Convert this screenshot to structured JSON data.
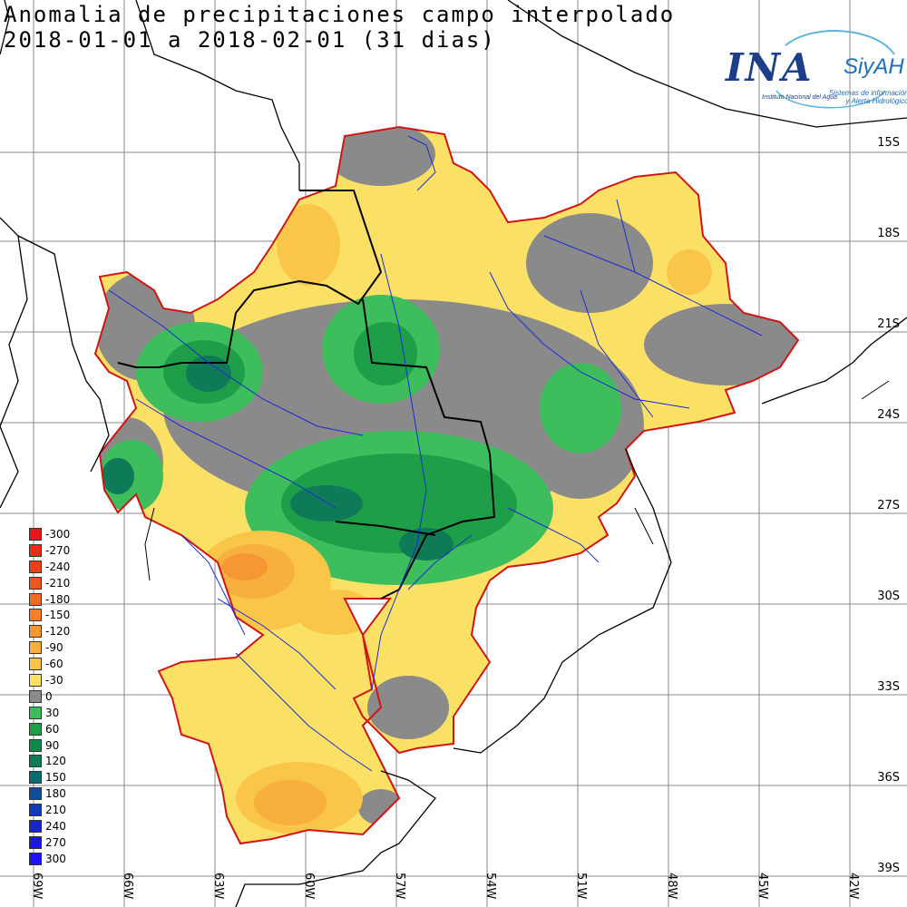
{
  "title": {
    "line1": "Anomalia de precipitaciones campo interpolado",
    "line2": "2018-01-01 a 2018-02-01 (31 dias)"
  },
  "logo": {
    "ina": "INA",
    "institute": "Instituto Nacional del Agua",
    "siyah": "SiyAH",
    "system_line1": "Sistemas de información",
    "system_line2": "y Alerta Hidrológico"
  },
  "latitudes": [
    "15S",
    "18S",
    "21S",
    "24S",
    "27S",
    "30S",
    "33S",
    "36S",
    "39S"
  ],
  "longitudes": [
    "69W",
    "66W",
    "63W",
    "60W",
    "57W",
    "54W",
    "51W",
    "48W",
    "45W",
    "42W"
  ],
  "legend": {
    "items": [
      {
        "label": "-300",
        "color": "#e8141e"
      },
      {
        "label": "-270",
        "color": "#ec2a1c"
      },
      {
        "label": "-240",
        "color": "#ee3e1e"
      },
      {
        "label": "-210",
        "color": "#f05422"
      },
      {
        "label": "-180",
        "color": "#f16a26"
      },
      {
        "label": "-150",
        "color": "#f3802c"
      },
      {
        "label": "-120",
        "color": "#f59834"
      },
      {
        "label": "-90",
        "color": "#f7b03e"
      },
      {
        "label": "-60",
        "color": "#f9c64a"
      },
      {
        "label": "-30",
        "color": "#fbe066"
      },
      {
        "label": "0",
        "color": "#8a8a8a"
      },
      {
        "label": "30",
        "color": "#3dbd5c"
      },
      {
        "label": "60",
        "color": "#1e9e48"
      },
      {
        "label": "90",
        "color": "#12884a"
      },
      {
        "label": "120",
        "color": "#0e7a58"
      },
      {
        "label": "150",
        "color": "#0c6a72"
      },
      {
        "label": "180",
        "color": "#0f4e96"
      },
      {
        "label": "210",
        "color": "#1238b4"
      },
      {
        "label": "240",
        "color": "#1426cc"
      },
      {
        "label": "270",
        "color": "#1818de"
      },
      {
        "label": "300",
        "color": "#1c14f2"
      }
    ]
  }
}
